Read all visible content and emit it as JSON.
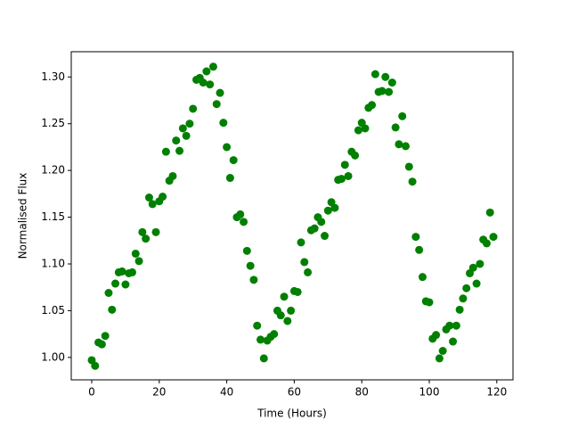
{
  "chart_data": {
    "type": "scatter",
    "x_label": "Time (Hours)",
    "y_label": "Normalised Flux",
    "color": "#008000",
    "x": [
      0,
      1,
      2,
      3,
      4,
      5,
      6,
      7,
      8,
      9,
      10,
      11,
      12,
      13,
      14,
      15,
      16,
      17,
      18,
      19,
      20,
      21,
      22,
      23,
      24,
      25,
      26,
      27,
      28,
      29,
      30,
      31,
      32,
      33,
      34,
      35,
      36,
      37,
      38,
      39,
      40,
      41,
      42,
      43,
      44,
      45,
      46,
      47,
      48,
      49,
      50,
      51,
      52,
      53,
      54,
      55,
      56,
      57,
      58,
      59,
      60,
      61,
      62,
      63,
      64,
      65,
      66,
      67,
      68,
      69,
      70,
      71,
      72,
      73,
      74,
      75,
      76,
      77,
      78,
      79,
      80,
      81,
      82,
      83,
      84,
      85,
      86,
      87,
      88,
      89,
      90,
      91,
      92,
      93,
      94,
      95,
      96,
      97,
      98,
      99,
      100,
      101,
      102,
      103,
      104,
      105,
      106,
      107,
      108,
      109,
      110,
      111,
      112,
      113,
      114,
      115,
      116,
      117,
      118,
      119
    ],
    "values": [
      0.997,
      0.991,
      1.016,
      1.014,
      1.023,
      1.069,
      1.051,
      1.079,
      1.091,
      1.092,
      1.078,
      1.09,
      1.091,
      1.111,
      1.103,
      1.134,
      1.127,
      1.171,
      1.164,
      1.134,
      1.167,
      1.172,
      1.22,
      1.189,
      1.194,
      1.232,
      1.221,
      1.245,
      1.237,
      1.25,
      1.266,
      1.297,
      1.299,
      1.294,
      1.306,
      1.292,
      1.311,
      1.271,
      1.283,
      1.251,
      1.225,
      1.192,
      1.211,
      1.15,
      1.153,
      1.145,
      1.114,
      1.098,
      1.083,
      1.034,
      1.019,
      0.999,
      1.018,
      1.022,
      1.025,
      1.05,
      1.045,
      1.065,
      1.039,
      1.05,
      1.071,
      1.07,
      1.123,
      1.102,
      1.091,
      1.136,
      1.138,
      1.15,
      1.145,
      1.13,
      1.157,
      1.166,
      1.16,
      1.19,
      1.191,
      1.206,
      1.194,
      1.22,
      1.216,
      1.243,
      1.251,
      1.245,
      1.267,
      1.27,
      1.303,
      1.284,
      1.285,
      1.3,
      1.284,
      1.294,
      1.246,
      1.228,
      1.258,
      1.226,
      1.204,
      1.188,
      1.129,
      1.115,
      1.086,
      1.06,
      1.059,
      1.02,
      1.024,
      0.999,
      1.007,
      1.03,
      1.034,
      1.017,
      1.034,
      1.051,
      1.063,
      1.074,
      1.09,
      1.096,
      1.079,
      1.1,
      1.126,
      1.122,
      1.155,
      1.129
    ],
    "xlim": [
      -6.07,
      124.8
    ],
    "xticks": [
      0,
      20,
      40,
      60,
      80,
      100,
      120
    ],
    "ylim": [
      0.976,
      1.327
    ],
    "yticks": [
      {
        "value": 1.0,
        "label": "1.00"
      },
      1.05,
      {
        "value": 1.1,
        "label": "1.10"
      },
      1.15,
      {
        "value": 1.2,
        "label": "1.20"
      },
      1.25,
      {
        "value": 1.3,
        "label": "1.30"
      }
    ]
  }
}
